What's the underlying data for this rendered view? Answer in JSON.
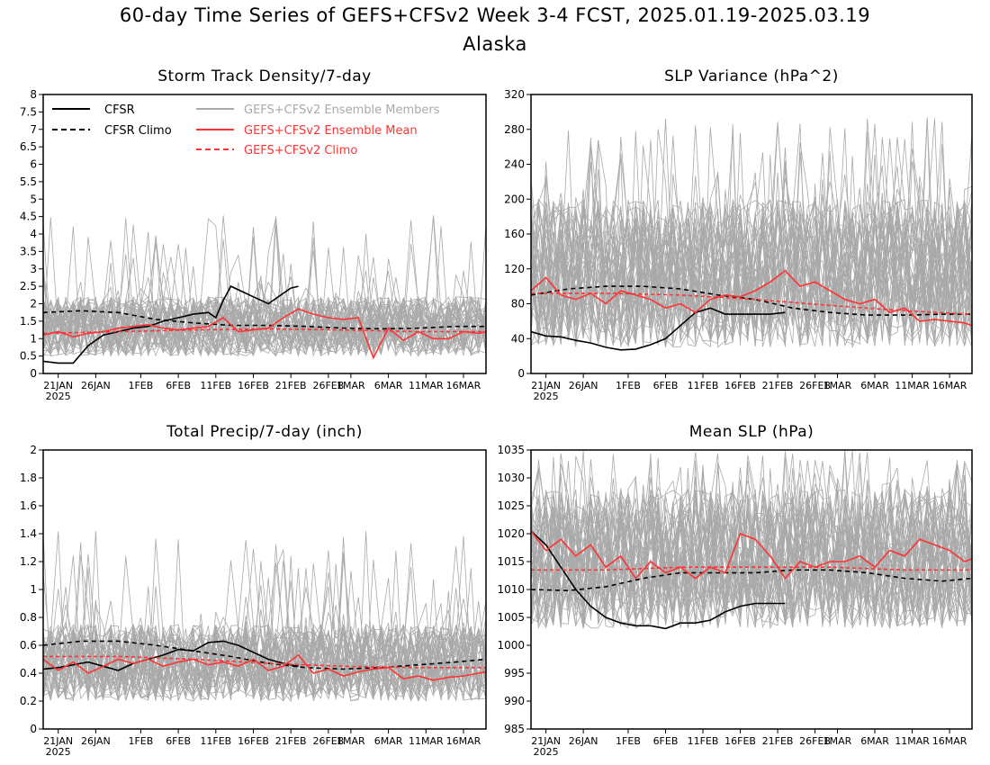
{
  "title_line1": "60-day Time Series of GEFS+CFSv2 Week 3-4 FCST, 2025.01.19-2025.03.19",
  "title_line2": "Alaska",
  "colors": {
    "cfsr": "#000000",
    "members": "#a9a9a9",
    "ens_mean": "#ff3333",
    "climo_red": "#ff3333"
  },
  "legend": {
    "cfsr": "CFSR",
    "cfsr_climo": "CFSR Climo",
    "members": "GEFS+CFSv2 Ensemble Members",
    "ens_mean": "GEFS+CFSv2 Ensemble Mean",
    "gefs_climo": "GEFS+CFSv2 Climo"
  },
  "x_tick_labels": [
    "21JAN",
    "26JAN",
    "1FEB",
    "6FEB",
    "11FEB",
    "16FEB",
    "21FEB",
    "26FEB",
    "1MAR",
    "6MAR",
    "11MAR",
    "16MAR"
  ],
  "x_year_label": "2025",
  "chart_data": [
    {
      "type": "line",
      "title": "Storm Track Density/7-day",
      "x_days": [
        0,
        59
      ],
      "ylim": [
        0,
        8
      ],
      "yticks": [
        "0",
        "0.5",
        "1",
        "1.5",
        "2",
        "2.5",
        "3",
        "3.5",
        "4",
        "4.5",
        "5",
        "5.5",
        "6",
        "6.5",
        "7",
        "7.5",
        "8"
      ],
      "ytick_values": [
        0,
        0.5,
        1,
        1.5,
        2,
        2.5,
        3,
        3.5,
        4,
        4.5,
        5,
        5.5,
        6,
        6.5,
        7,
        7.5,
        8
      ],
      "members_band": {
        "low": 0.5,
        "high": 2.2,
        "spike_max": 4.6
      },
      "series": [
        {
          "name": "CFSR",
          "style": "solid-black",
          "x": [
            0,
            2,
            4,
            6,
            8,
            10,
            12,
            14,
            16,
            18,
            20,
            22,
            23,
            24,
            25,
            27,
            28,
            30,
            32,
            33,
            34
          ],
          "y": [
            0.35,
            0.3,
            0.3,
            0.8,
            1.1,
            1.2,
            1.3,
            1.35,
            1.5,
            1.6,
            1.7,
            1.75,
            1.6,
            2.1,
            2.5,
            2.3,
            2.2,
            2.0,
            2.3,
            2.45,
            2.5
          ]
        },
        {
          "name": "CFSR Climo",
          "style": "dashed-black",
          "x": [
            0,
            5,
            10,
            15,
            20,
            25,
            30,
            35,
            40,
            45,
            50,
            55,
            59
          ],
          "y": [
            1.75,
            1.8,
            1.75,
            1.55,
            1.45,
            1.38,
            1.38,
            1.35,
            1.3,
            1.28,
            1.3,
            1.35,
            1.35
          ]
        },
        {
          "name": "GEFS+CFSv2 Ensemble Mean",
          "style": "solid-red",
          "x": [
            0,
            2,
            4,
            6,
            8,
            10,
            12,
            14,
            16,
            18,
            20,
            22,
            24,
            26,
            28,
            30,
            32,
            34,
            36,
            38,
            40,
            42,
            44,
            46,
            48,
            50,
            52,
            54,
            56,
            58,
            59
          ],
          "y": [
            1.1,
            1.2,
            1.05,
            1.15,
            1.2,
            1.3,
            1.35,
            1.4,
            1.3,
            1.25,
            1.3,
            1.35,
            1.6,
            1.2,
            1.25,
            1.3,
            1.6,
            1.85,
            1.7,
            1.6,
            1.55,
            1.6,
            0.45,
            1.3,
            0.95,
            1.2,
            1.0,
            1.0,
            1.2,
            1.15,
            1.2
          ]
        },
        {
          "name": "GEFS+CFSv2 Climo",
          "style": "dashed-red",
          "x": [
            0,
            10,
            20,
            30,
            40,
            50,
            59
          ],
          "y": [
            1.15,
            1.2,
            1.25,
            1.28,
            1.25,
            1.2,
            1.2
          ]
        }
      ]
    },
    {
      "type": "line",
      "title": "SLP Variance (hPa^2)",
      "x_days": [
        0,
        59
      ],
      "ylim": [
        0,
        320
      ],
      "yticks": [
        "0",
        "40",
        "80",
        "120",
        "160",
        "200",
        "240",
        "280",
        "320"
      ],
      "ytick_values": [
        0,
        40,
        80,
        120,
        160,
        200,
        240,
        280,
        320
      ],
      "members_band": {
        "low": 30,
        "high": 200,
        "spike_max": 295
      },
      "series": [
        {
          "name": "CFSR",
          "style": "solid-black",
          "x": [
            0,
            2,
            4,
            6,
            8,
            10,
            12,
            14,
            16,
            18,
            20,
            22,
            24,
            26,
            28,
            30,
            32,
            34
          ],
          "y": [
            48,
            43,
            42,
            38,
            35,
            30,
            27,
            28,
            33,
            40,
            55,
            70,
            75,
            68,
            68,
            68,
            68,
            70
          ]
        },
        {
          "name": "CFSR Climo",
          "style": "dashed-black",
          "x": [
            0,
            5,
            10,
            15,
            20,
            25,
            30,
            35,
            40,
            45,
            50,
            55,
            59
          ],
          "y": [
            90,
            97,
            100,
            100,
            97,
            90,
            85,
            75,
            70,
            67,
            67,
            68,
            68
          ]
        },
        {
          "name": "GEFS+CFSv2 Ensemble Mean",
          "style": "solid-red",
          "x": [
            0,
            2,
            4,
            6,
            8,
            10,
            12,
            14,
            16,
            18,
            20,
            22,
            24,
            26,
            28,
            30,
            32,
            34,
            36,
            38,
            40,
            42,
            44,
            46,
            48,
            50,
            52,
            54,
            56,
            58,
            59
          ],
          "y": [
            95,
            110,
            90,
            85,
            92,
            80,
            95,
            90,
            85,
            75,
            80,
            70,
            85,
            90,
            88,
            95,
            105,
            118,
            100,
            105,
            95,
            85,
            80,
            85,
            70,
            75,
            60,
            62,
            60,
            58,
            55
          ]
        },
        {
          "name": "GEFS+CFSv2 Climo",
          "style": "dashed-red",
          "x": [
            0,
            10,
            20,
            30,
            40,
            50,
            59
          ],
          "y": [
            92,
            92,
            90,
            85,
            78,
            72,
            68
          ]
        }
      ]
    },
    {
      "type": "line",
      "title": "Total Precip/7-day (inch)",
      "x_days": [
        0,
        59
      ],
      "ylim": [
        0,
        2
      ],
      "yticks": [
        "0",
        "0.2",
        "0.4",
        "0.6",
        "0.8",
        "1",
        "1.2",
        "1.4",
        "1.6",
        "1.8",
        "2"
      ],
      "ytick_values": [
        0,
        0.2,
        0.4,
        0.6,
        0.8,
        1,
        1.2,
        1.4,
        1.6,
        1.8,
        2
      ],
      "members_band": {
        "low": 0.2,
        "high": 0.75,
        "spike_max": 1.42
      },
      "series": [
        {
          "name": "CFSR",
          "style": "solid-black",
          "x": [
            0,
            2,
            4,
            6,
            8,
            10,
            12,
            14,
            16,
            18,
            20,
            22,
            24,
            26,
            28,
            30,
            32,
            34
          ],
          "y": [
            0.43,
            0.44,
            0.46,
            0.48,
            0.45,
            0.42,
            0.47,
            0.5,
            0.53,
            0.57,
            0.56,
            0.62,
            0.63,
            0.6,
            0.55,
            0.5,
            0.47,
            0.45
          ]
        },
        {
          "name": "CFSR Climo",
          "style": "dashed-black",
          "x": [
            0,
            5,
            10,
            15,
            20,
            25,
            30,
            35,
            40,
            45,
            50,
            55,
            59
          ],
          "y": [
            0.6,
            0.63,
            0.63,
            0.6,
            0.56,
            0.52,
            0.47,
            0.44,
            0.43,
            0.44,
            0.46,
            0.48,
            0.5
          ]
        },
        {
          "name": "GEFS+CFSv2 Ensemble Mean",
          "style": "solid-red",
          "x": [
            0,
            2,
            4,
            6,
            8,
            10,
            12,
            14,
            16,
            18,
            20,
            22,
            24,
            26,
            28,
            30,
            32,
            34,
            36,
            38,
            40,
            42,
            44,
            46,
            48,
            50,
            52,
            54,
            56,
            58,
            59
          ],
          "y": [
            0.5,
            0.42,
            0.48,
            0.4,
            0.45,
            0.5,
            0.47,
            0.5,
            0.45,
            0.48,
            0.5,
            0.46,
            0.48,
            0.45,
            0.5,
            0.42,
            0.45,
            0.53,
            0.4,
            0.43,
            0.38,
            0.41,
            0.43,
            0.44,
            0.36,
            0.38,
            0.35,
            0.37,
            0.38,
            0.4,
            0.41
          ]
        },
        {
          "name": "GEFS+CFSv2 Climo",
          "style": "dashed-red",
          "x": [
            0,
            10,
            20,
            30,
            40,
            50,
            59
          ],
          "y": [
            0.52,
            0.52,
            0.5,
            0.47,
            0.45,
            0.44,
            0.44
          ]
        }
      ]
    },
    {
      "type": "line",
      "title": "Mean SLP (hPa)",
      "x_days": [
        0,
        59
      ],
      "ylim": [
        985,
        1035
      ],
      "yticks": [
        "985",
        "990",
        "995",
        "1000",
        "1005",
        "1010",
        "1015",
        "1020",
        "1025",
        "1030",
        "1035"
      ],
      "ytick_values": [
        985,
        990,
        995,
        1000,
        1005,
        1010,
        1015,
        1020,
        1025,
        1030,
        1035
      ],
      "members_band": {
        "low": 1003,
        "high": 1028,
        "spike_max": 1035
      },
      "series": [
        {
          "name": "CFSR",
          "style": "solid-black",
          "x": [
            0,
            2,
            4,
            6,
            8,
            10,
            12,
            14,
            16,
            18,
            20,
            22,
            24,
            26,
            28,
            30,
            32,
            34
          ],
          "y": [
            1020.5,
            1018,
            1014,
            1010,
            1007,
            1005,
            1004,
            1003.5,
            1003.5,
            1003,
            1004,
            1004,
            1004.5,
            1006,
            1007,
            1007.5,
            1007.5,
            1007.5
          ]
        },
        {
          "name": "CFSR Climo",
          "style": "dashed-black",
          "x": [
            0,
            5,
            10,
            15,
            20,
            25,
            30,
            35,
            40,
            45,
            50,
            55,
            59
          ],
          "y": [
            1010,
            1009.8,
            1010.5,
            1012,
            1013,
            1013,
            1013,
            1013.5,
            1013.5,
            1013,
            1012,
            1011.5,
            1012
          ]
        },
        {
          "name": "GEFS+CFSv2 Ensemble Mean",
          "style": "solid-red",
          "x": [
            0,
            2,
            4,
            6,
            8,
            10,
            12,
            14,
            16,
            18,
            20,
            22,
            24,
            26,
            28,
            30,
            32,
            34,
            36,
            38,
            40,
            42,
            44,
            46,
            48,
            50,
            52,
            54,
            56,
            58,
            59
          ],
          "y": [
            1020.5,
            1017,
            1019,
            1016,
            1018,
            1014,
            1016,
            1012,
            1015,
            1013,
            1014,
            1012,
            1014,
            1013,
            1020,
            1019,
            1016,
            1012,
            1015,
            1014,
            1015,
            1015,
            1016,
            1014,
            1017,
            1016,
            1019,
            1018,
            1017,
            1015,
            1015.5
          ]
        },
        {
          "name": "GEFS+CFSv2 Climo",
          "style": "dashed-red",
          "x": [
            0,
            10,
            20,
            30,
            40,
            50,
            59
          ],
          "y": [
            1013.5,
            1013.5,
            1014,
            1014,
            1014,
            1013.5,
            1013.5
          ]
        }
      ]
    }
  ]
}
